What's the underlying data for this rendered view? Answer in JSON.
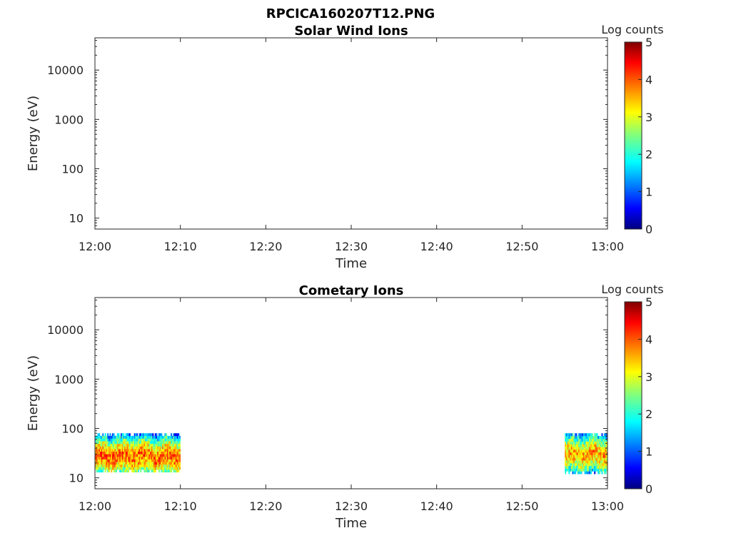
{
  "figure_title": "RPCICA160207T12.PNG",
  "chart_data": [
    {
      "type": "heatmap",
      "title": "Solar Wind Ions",
      "xlabel": "Time",
      "ylabel": "Energy (eV)",
      "x_ticks": [
        "12:00",
        "12:10",
        "12:20",
        "12:30",
        "12:40",
        "12:50",
        "13:00"
      ],
      "xlim": [
        "12:00",
        "13:00"
      ],
      "y_scale": "log",
      "y_ticks": [
        10,
        100,
        1000,
        10000
      ],
      "y_tick_labels": [
        "10",
        "100",
        "1000",
        "10000"
      ],
      "ylim": [
        6,
        45000
      ],
      "colorbar": {
        "label": "Log counts",
        "min": 0,
        "max": 5,
        "ticks": [
          "0",
          "1",
          "2",
          "3",
          "4",
          "5"
        ],
        "colormap": "jet"
      },
      "data_regions": []
    },
    {
      "type": "heatmap",
      "title": "Cometary Ions",
      "xlabel": "Time",
      "ylabel": "Energy (eV)",
      "x_ticks": [
        "12:00",
        "12:10",
        "12:20",
        "12:30",
        "12:40",
        "12:50",
        "13:00"
      ],
      "xlim": [
        "12:00",
        "13:00"
      ],
      "y_scale": "log",
      "y_ticks": [
        10,
        100,
        1000,
        10000
      ],
      "y_tick_labels": [
        "10",
        "100",
        "1000",
        "10000"
      ],
      "ylim": [
        6,
        45000
      ],
      "colorbar": {
        "label": "Log counts",
        "min": 0,
        "max": 5,
        "ticks": [
          "0",
          "1",
          "2",
          "3",
          "4",
          "5"
        ],
        "colormap": "jet"
      },
      "data_regions": [
        {
          "time_start": "12:00",
          "time_end": "12:10",
          "energy_min": 13,
          "energy_max": 80,
          "peak_energy": 27,
          "peak_log_counts": 3.9
        },
        {
          "time_start": "12:55",
          "time_end": "13:00",
          "energy_min": 12,
          "energy_max": 80,
          "peak_energy": 30,
          "peak_log_counts": 3.6
        }
      ]
    }
  ]
}
